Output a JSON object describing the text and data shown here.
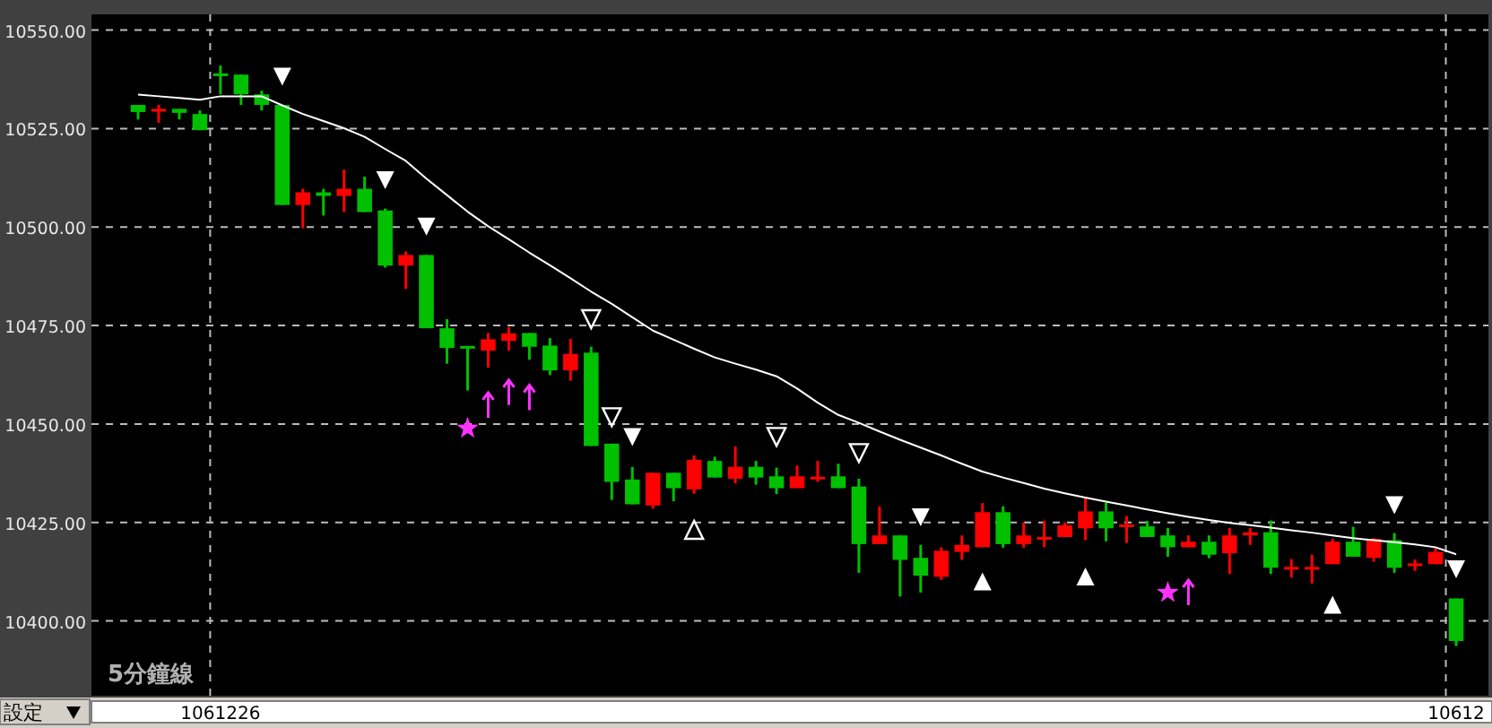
{
  "chart_data": {
    "type": "candlestick",
    "categories": [
      null,
      null,
      null,
      null,
      "1061226",
      null,
      null,
      null,
      null,
      null,
      null,
      null,
      null,
      null,
      null,
      null,
      null,
      null,
      null,
      null,
      null,
      null,
      null,
      null,
      null,
      null,
      null,
      null,
      null,
      null,
      null,
      null,
      null,
      null,
      null,
      null,
      null,
      null,
      null,
      null,
      null,
      null,
      null,
      null,
      null,
      null,
      null,
      null,
      null,
      null,
      null,
      null,
      null,
      null,
      null,
      null,
      null,
      null,
      null,
      null,
      null,
      null,
      null,
      null,
      "10612"
    ],
    "ohlc": [
      [
        10531,
        10531,
        10527.3,
        10529.2
      ],
      [
        10529.4,
        10531,
        10526.5,
        10530
      ],
      [
        10530,
        10530,
        10527.3,
        10529
      ],
      [
        10528.7,
        10529.6,
        10524.6,
        10524.6
      ],
      [
        10539,
        10541,
        10533.7,
        10538.5
      ],
      [
        10538.7,
        10538.7,
        10531,
        10533.7
      ],
      [
        10533.7,
        10534.6,
        10529.6,
        10531
      ],
      [
        10531,
        10531,
        10505.6,
        10505.6
      ],
      [
        10505.6,
        10509.7,
        10499.7,
        10508.8
      ],
      [
        10508.8,
        10509.7,
        10502.9,
        10507.9
      ],
      [
        10507.9,
        10514.6,
        10503.8,
        10509.7
      ],
      [
        10509.7,
        10512.8,
        10503.8,
        10503.8
      ],
      [
        10504.2,
        10504.7,
        10489.7,
        10490.2
      ],
      [
        10490.2,
        10493.8,
        10484.3,
        10492.9
      ],
      [
        10492.9,
        10492.9,
        10474.3,
        10474.3
      ],
      [
        10474.3,
        10476.6,
        10465.3,
        10469.3
      ],
      [
        10469.8,
        10469.8,
        10458.5,
        10469.3
      ],
      [
        10468.6,
        10473.1,
        10464.3,
        10471.5
      ],
      [
        10471.1,
        10474.6,
        10468.6,
        10473
      ],
      [
        10473.1,
        10473.1,
        10466.3,
        10469.6
      ],
      [
        10469.9,
        10471.8,
        10462.4,
        10463.6
      ],
      [
        10463.6,
        10471.6,
        10461,
        10467.8
      ],
      [
        10468.1,
        10469.6,
        10444.4,
        10444.4
      ],
      [
        10445,
        10445,
        10430.7,
        10435.3
      ],
      [
        10435.9,
        10439.1,
        10429.6,
        10429.6
      ],
      [
        10429.3,
        10437.6,
        10428.5,
        10437.6
      ],
      [
        10437.6,
        10437.6,
        10430.4,
        10433.7
      ],
      [
        10433.4,
        10442,
        10432.3,
        10440.9
      ],
      [
        10440.6,
        10441.7,
        10436.4,
        10436.4
      ],
      [
        10436.1,
        10444.3,
        10434.9,
        10439.1
      ],
      [
        10439.1,
        10440.6,
        10434.6,
        10436.4
      ],
      [
        10436.7,
        10438.9,
        10432.2,
        10433.7
      ],
      [
        10433.7,
        10439.4,
        10433.7,
        10436.7
      ],
      [
        10436,
        10440.6,
        10435.3,
        10436.6
      ],
      [
        10436.7,
        10439.9,
        10433.7,
        10433.7
      ],
      [
        10434.1,
        10436.1,
        10412.2,
        10419.5
      ],
      [
        10419.5,
        10429.1,
        10419.5,
        10421.7
      ],
      [
        10421.7,
        10421.7,
        10406.2,
        10415.5
      ],
      [
        10416,
        10419.3,
        10407.2,
        10411.5
      ],
      [
        10411.2,
        10418.7,
        10410.4,
        10417.8
      ],
      [
        10417.5,
        10421.7,
        10415.5,
        10419.3
      ],
      [
        10418.7,
        10429.9,
        10418.7,
        10427.6
      ],
      [
        10427.6,
        10429.1,
        10418.6,
        10419.5
      ],
      [
        10419.5,
        10425,
        10418.6,
        10421.7
      ],
      [
        10421,
        10425.4,
        10418.7,
        10421.3
      ],
      [
        10421.3,
        10425,
        10421.3,
        10424.3
      ],
      [
        10423.5,
        10431.1,
        10420.5,
        10427.8
      ],
      [
        10427.8,
        10430,
        10420.2,
        10423.5
      ],
      [
        10424,
        10426.6,
        10419.8,
        10424.5
      ],
      [
        10424,
        10425.4,
        10421.3,
        10421.3
      ],
      [
        10421.7,
        10423.6,
        10416.3,
        10418.7
      ],
      [
        10418.7,
        10421.7,
        10418.7,
        10420.1
      ],
      [
        10420.1,
        10421.7,
        10415.9,
        10416.8
      ],
      [
        10417.2,
        10423.6,
        10411.9,
        10421.7
      ],
      [
        10421.7,
        10423.6,
        10419.3,
        10422.5
      ],
      [
        10422.5,
        10425.5,
        10411.9,
        10413.5
      ],
      [
        10413.3,
        10415.7,
        10411,
        10413.7
      ],
      [
        10413.3,
        10416.8,
        10409.5,
        10413.7
      ],
      [
        10414.4,
        10420.8,
        10414.4,
        10420.1
      ],
      [
        10420.1,
        10423.9,
        10416.3,
        10416.3
      ],
      [
        10416,
        10421,
        10415,
        10420.8
      ],
      [
        10420.5,
        10422.3,
        10412.2,
        10413.5
      ],
      [
        10414.2,
        10415.6,
        10412.7,
        10414.6
      ],
      [
        10414.4,
        10418.7,
        10414.4,
        10417.5
      ],
      [
        10405.7,
        10405.7,
        10393.6,
        10394.9
      ]
    ],
    "colors": [
      "#00c000",
      "#ff0000",
      "#00c000",
      "#00c000",
      "#00c000",
      "#00c000",
      "#00c000",
      "#00c000",
      "#ff0000",
      "#00c000",
      "#ff0000",
      "#00c000",
      "#00c000",
      "#ff0000",
      "#00c000",
      "#00c000",
      "#00c000",
      "#ff0000",
      "#ff0000",
      "#00c000",
      "#00c000",
      "#ff0000",
      "#00c000",
      "#00c000",
      "#00c000",
      "#ff0000",
      "#00c000",
      "#ff0000",
      "#00c000",
      "#ff0000",
      "#00c000",
      "#00c000",
      "#ff0000",
      "#ff0000",
      "#00c000",
      "#00c000",
      "#ff0000",
      "#00c000",
      "#00c000",
      "#ff0000",
      "#ff0000",
      "#ff0000",
      "#00c000",
      "#ff0000",
      "#ff0000",
      "#ff0000",
      "#ff0000",
      "#00c000",
      "#ff0000",
      "#00c000",
      "#00c000",
      "#ff0000",
      "#00c000",
      "#ff0000",
      "#ff0000",
      "#00c000",
      "#ff0000",
      "#ff0000",
      "#ff0000",
      "#00c000",
      "#ff0000",
      "#00c000",
      "#ff0000",
      "#ff0000",
      "#00c000"
    ],
    "series": [
      {
        "type": "line",
        "color": "#ffffff",
        "values": [
          10533.6,
          10533.2,
          10532.8,
          10532.3,
          10533.2,
          10533.2,
          10533.2,
          10530.9,
          10528.7,
          10526.9,
          10525.1,
          10522.9,
          10519.8,
          10516.8,
          10512.3,
          10508.1,
          10503.9,
          10500.2,
          10496.9,
          10493.5,
          10490.3,
          10487,
          10483.6,
          10480.5,
          10477.1,
          10473.7,
          10471.4,
          10469.1,
          10466.9,
          10465.3,
          10463.8,
          10462.1,
          10459,
          10455.4,
          10452.3,
          10450.3,
          10448.1,
          10446,
          10444,
          10442,
          10439.9,
          10437.9,
          10436.4,
          10435,
          10433.6,
          10432.4,
          10431.3,
          10430.3,
          10429.3,
          10428.3,
          10427.3,
          10426.4,
          10425.6,
          10424.9,
          10424.3,
          10423.7,
          10423,
          10422.4,
          10421.7,
          10421,
          10420.5,
          10420,
          10419.4,
          10418.7,
          10416.9
        ]
      },
      {
        "type": "scatter",
        "color": "#ffffff",
        "values": [
          null,
          null,
          null,
          null,
          null,
          null,
          null,
          10538.2,
          null,
          null,
          null,
          null,
          10511.9,
          null,
          10500.1,
          null,
          null,
          null,
          null,
          null,
          null,
          null,
          null,
          null,
          10446.7,
          null,
          null,
          null,
          null,
          null,
          null,
          null,
          null,
          null,
          null,
          null,
          null,
          null,
          10426.3,
          null,
          null,
          null,
          null,
          null,
          null,
          null,
          null,
          null,
          null,
          null,
          null,
          null,
          null,
          null,
          null,
          null,
          null,
          null,
          null,
          null,
          null,
          10429.4,
          null,
          null,
          10413.1
        ]
      },
      {
        "type": "scatter",
        "color": "#ffffff",
        "values": [
          null,
          null,
          null,
          null,
          null,
          null,
          null,
          null,
          null,
          null,
          null,
          null,
          null,
          null,
          null,
          null,
          null,
          null,
          null,
          null,
          null,
          null,
          10476.6,
          10451.7,
          null,
          null,
          null,
          null,
          null,
          null,
          null,
          10446.7,
          null,
          null,
          null,
          10442.6,
          null,
          null,
          null,
          null,
          null,
          null,
          null,
          null,
          null,
          null,
          null,
          null,
          null,
          null,
          null,
          null,
          null,
          null,
          null,
          null,
          null,
          null,
          null,
          null,
          null,
          null,
          null,
          null,
          null
        ]
      },
      {
        "type": "scatter",
        "marker": "triangle",
        "color": "#ffffff",
        "values": [
          null,
          null,
          null,
          null,
          null,
          null,
          null,
          null,
          null,
          null,
          null,
          null,
          null,
          null,
          null,
          null,
          null,
          null,
          null,
          null,
          null,
          null,
          null,
          null,
          null,
          null,
          null,
          null,
          null,
          null,
          null,
          null,
          null,
          null,
          null,
          null,
          null,
          null,
          null,
          null,
          null,
          10410,
          null,
          null,
          null,
          null,
          10411.3,
          null,
          null,
          null,
          null,
          null,
          null,
          null,
          null,
          null,
          null,
          null,
          10404.1,
          null,
          null,
          null,
          null,
          null,
          null
        ]
      },
      {
        "type": "scatter",
        "color": "#ffffff",
        "values": [
          null,
          null,
          null,
          null,
          null,
          null,
          null,
          null,
          null,
          null,
          null,
          null,
          null,
          null,
          null,
          null,
          null,
          null,
          null,
          null,
          null,
          null,
          null,
          null,
          null,
          null,
          null,
          10423.1,
          null,
          null,
          null,
          null,
          null,
          null,
          null,
          null,
          null,
          null,
          null,
          null,
          null,
          null,
          null,
          null,
          null,
          null,
          null,
          null,
          null,
          null,
          null,
          null,
          null,
          null,
          null,
          null,
          null,
          null,
          null,
          null,
          null,
          null,
          null,
          null,
          null
        ]
      },
      {
        "type": "scatter",
        "marker": "star",
        "color": "#ff33ff",
        "values": [
          null,
          null,
          null,
          null,
          null,
          null,
          null,
          null,
          null,
          null,
          null,
          null,
          null,
          null,
          null,
          null,
          10448.9,
          null,
          null,
          null,
          null,
          null,
          null,
          null,
          null,
          null,
          null,
          null,
          null,
          null,
          null,
          null,
          null,
          null,
          null,
          null,
          null,
          null,
          null,
          null,
          null,
          null,
          null,
          null,
          null,
          null,
          null,
          null,
          null,
          null,
          10407.2,
          null,
          null,
          null,
          null,
          null,
          null,
          null,
          null,
          null,
          null,
          null,
          null,
          null,
          null
        ]
      },
      {
        "type": "scatter",
        "color": "#ff33ff",
        "values": [
          null,
          null,
          null,
          null,
          null,
          null,
          null,
          null,
          null,
          null,
          null,
          null,
          null,
          null,
          null,
          null,
          null,
          10456.6,
          10459.8,
          10458.5,
          null,
          null,
          null,
          null,
          null,
          null,
          null,
          null,
          null,
          null,
          null,
          null,
          null,
          null,
          null,
          null,
          null,
          null,
          null,
          null,
          null,
          null,
          null,
          null,
          null,
          null,
          null,
          null,
          null,
          null,
          null,
          10409,
          null,
          null,
          null,
          null,
          null,
          null,
          null,
          null,
          null,
          null,
          null,
          null,
          null
        ]
      }
    ],
    "ylim": [
      10381,
      10554
    ],
    "yticks": [
      {
        "value": 10400,
        "label": "10400.00"
      },
      {
        "value": 10425,
        "label": "10425.00"
      },
      {
        "value": 10450,
        "label": "10450.00"
      },
      {
        "value": 10475,
        "label": "10475.00"
      },
      {
        "value": 10500,
        "label": "10500.00"
      },
      {
        "value": 10525,
        "label": "10525.00"
      },
      {
        "value": 10550,
        "label": "10550.00"
      }
    ],
    "grid": true,
    "annotations": [
      "5分鐘線",
      "設定"
    ]
  }
}
